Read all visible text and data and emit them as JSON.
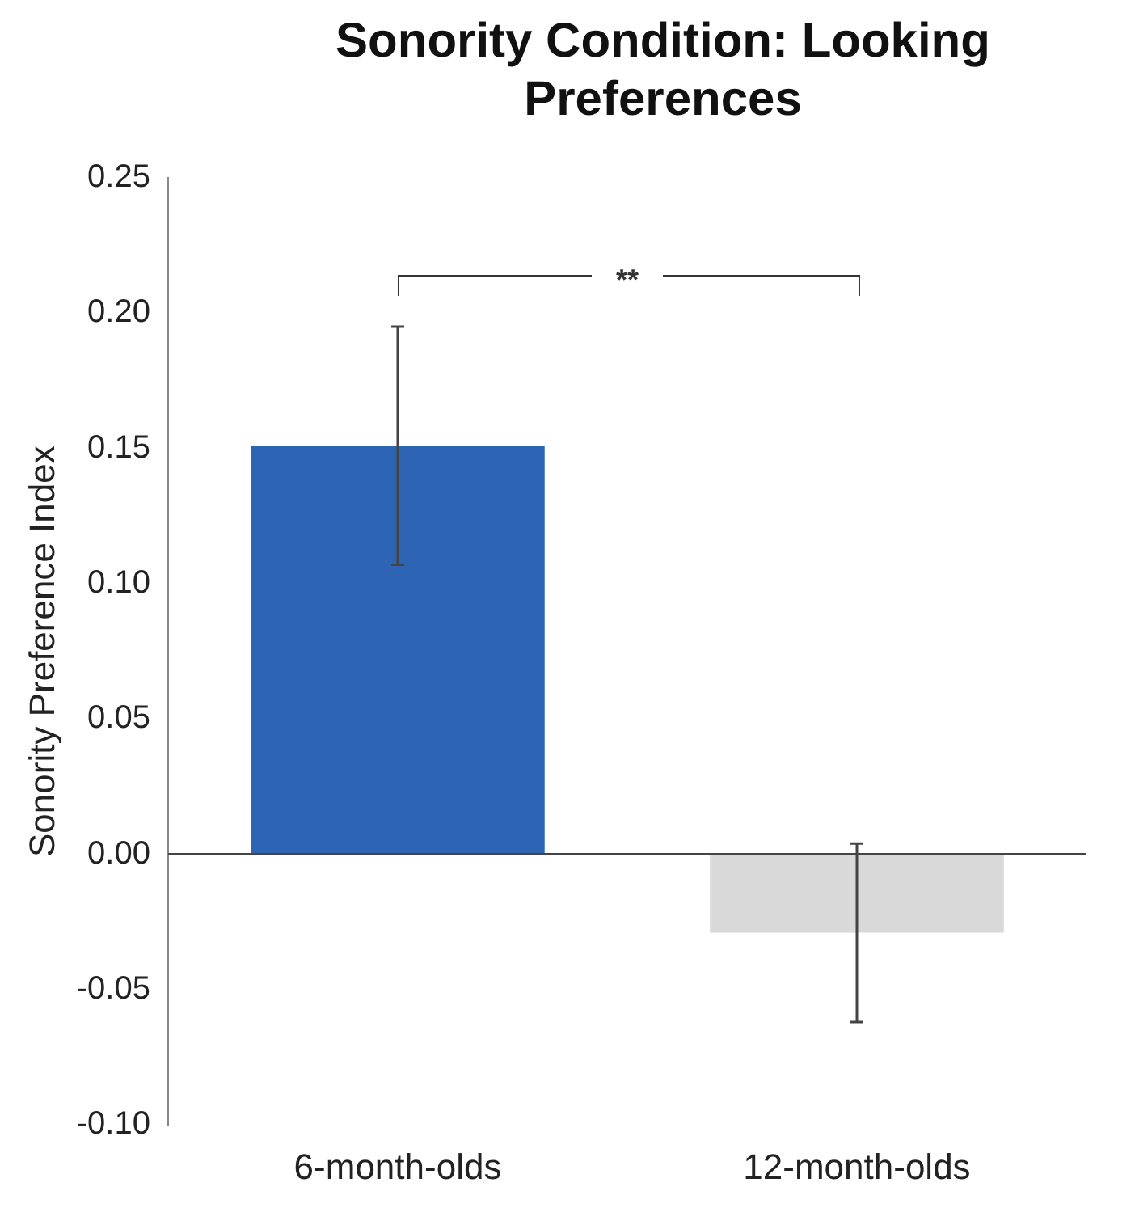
{
  "chart_data": {
    "type": "bar",
    "title": "Sonority Condition: Looking Preferences",
    "ylabel": "Sonority Preference Index",
    "categories": [
      "6-month-olds",
      "12-month-olds"
    ],
    "values": [
      0.151,
      -0.029
    ],
    "colors": [
      "#2e64b4",
      "#d9d9d9"
    ],
    "errors": [
      0.044,
      0.033
    ],
    "ylim": [
      -0.1,
      0.25
    ],
    "yticks": [
      {
        "value": -0.1,
        "label": "-0.10"
      },
      {
        "value": -0.05,
        "label": "-0.05"
      },
      {
        "value": 0,
        "label": "0.00"
      },
      {
        "value": 0.05,
        "label": "0.05"
      },
      {
        "value": 0.1,
        "label": "0.10"
      },
      {
        "value": 0.15,
        "label": "0.15"
      },
      {
        "value": 0.2,
        "label": "0.20"
      },
      {
        "value": 0.25,
        "label": "0.25"
      }
    ],
    "grid": false,
    "legend": false,
    "ref_lines": [
      {
        "axis": "y",
        "value": 0,
        "color": "#444444"
      }
    ],
    "annotations": [
      "**"
    ]
  }
}
